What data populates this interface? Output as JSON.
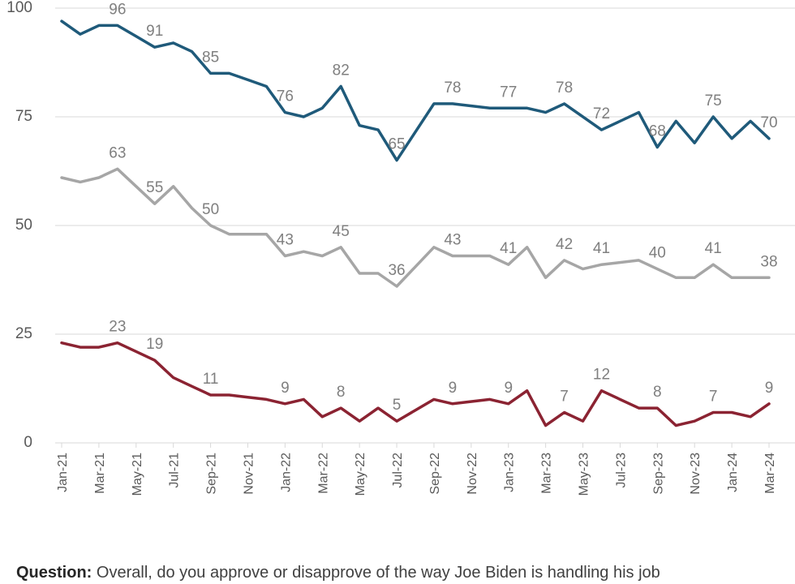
{
  "chart_data": {
    "type": "line",
    "ylim": [
      0,
      100
    ],
    "yticks": [
      0,
      25,
      50,
      75,
      100
    ],
    "grid": true,
    "x_tick_labels": [
      "Jan-21",
      "Mar-21",
      "May-21",
      "Jul-21",
      "Sep-21",
      "Nov-21",
      "Jan-22",
      "Mar-22",
      "May-22",
      "Jul-22",
      "Sep-22",
      "Nov-22",
      "Jan-23",
      "Mar-23",
      "May-23",
      "Jul-23",
      "Sep-23",
      "Nov-23",
      "Jan-24",
      "Mar-24"
    ],
    "colors": [
      "#1f5a7a",
      "#a6a6a6",
      "#8b2332"
    ],
    "series": [
      {
        "color": "#1f5a7a",
        "points": [
          [
            "2021-01",
            97
          ],
          [
            "2021-02",
            94
          ],
          [
            "2021-03",
            96
          ],
          [
            "2021-04",
            96
          ],
          [
            "2021-05",
            93.5
          ],
          [
            "2021-06",
            91
          ],
          [
            "2021-07",
            92
          ],
          [
            "2021-08",
            90
          ],
          [
            "2021-09",
            85
          ],
          [
            "2021-10",
            85
          ],
          [
            "2021-11",
            83.5
          ],
          [
            "2021-12",
            82
          ],
          [
            "2022-01",
            76
          ],
          [
            "2022-02",
            75
          ],
          [
            "2022-03",
            77
          ],
          [
            "2022-04",
            82
          ],
          [
            "2022-05",
            73
          ],
          [
            "2022-06",
            72
          ],
          [
            "2022-07",
            65
          ],
          [
            "2022-09",
            78
          ],
          [
            "2022-10",
            78
          ],
          [
            "2022-12",
            77
          ],
          [
            "2023-01",
            77
          ],
          [
            "2023-02",
            77
          ],
          [
            "2023-03",
            76
          ],
          [
            "2023-04",
            78
          ],
          [
            "2023-06",
            72
          ],
          [
            "2023-08",
            76
          ],
          [
            "2023-09",
            68
          ],
          [
            "2023-10",
            74
          ],
          [
            "2023-11",
            69
          ],
          [
            "2023-12",
            75
          ],
          [
            "2024-01",
            70
          ],
          [
            "2024-02",
            74
          ],
          [
            "2024-03",
            70
          ]
        ],
        "labels": [
          [
            "2021-04",
            96
          ],
          [
            "2021-06",
            91
          ],
          [
            "2021-09",
            85
          ],
          [
            "2022-01",
            76
          ],
          [
            "2022-04",
            82
          ],
          [
            "2022-07",
            65
          ],
          [
            "2022-10",
            78
          ],
          [
            "2023-01",
            77
          ],
          [
            "2023-04",
            78
          ],
          [
            "2023-06",
            72
          ],
          [
            "2023-09",
            68
          ],
          [
            "2023-12",
            75
          ],
          [
            "2024-03",
            70
          ]
        ]
      },
      {
        "color": "#a6a6a6",
        "points": [
          [
            "2021-01",
            61
          ],
          [
            "2021-02",
            60
          ],
          [
            "2021-03",
            61
          ],
          [
            "2021-04",
            63
          ],
          [
            "2021-05",
            59
          ],
          [
            "2021-06",
            55
          ],
          [
            "2021-07",
            59
          ],
          [
            "2021-08",
            54
          ],
          [
            "2021-09",
            50
          ],
          [
            "2021-10",
            48
          ],
          [
            "2021-11",
            48
          ],
          [
            "2021-12",
            48
          ],
          [
            "2022-01",
            43
          ],
          [
            "2022-02",
            44
          ],
          [
            "2022-03",
            43
          ],
          [
            "2022-04",
            45
          ],
          [
            "2022-05",
            39
          ],
          [
            "2022-06",
            39
          ],
          [
            "2022-07",
            36
          ],
          [
            "2022-09",
            45
          ],
          [
            "2022-10",
            43
          ],
          [
            "2022-12",
            43
          ],
          [
            "2023-01",
            41
          ],
          [
            "2023-02",
            45
          ],
          [
            "2023-03",
            38
          ],
          [
            "2023-04",
            42
          ],
          [
            "2023-05",
            40
          ],
          [
            "2023-06",
            41
          ],
          [
            "2023-08",
            42
          ],
          [
            "2023-10",
            38
          ],
          [
            "2023-11",
            38
          ],
          [
            "2023-12",
            41
          ],
          [
            "2024-01",
            38
          ],
          [
            "2024-02",
            38
          ],
          [
            "2024-03",
            38
          ]
        ],
        "labels": [
          [
            "2021-04",
            63
          ],
          [
            "2021-06",
            55
          ],
          [
            "2021-09",
            50
          ],
          [
            "2022-01",
            43
          ],
          [
            "2022-04",
            45
          ],
          [
            "2022-07",
            36
          ],
          [
            "2022-10",
            43
          ],
          [
            "2023-01",
            41
          ],
          [
            "2023-04",
            42
          ],
          [
            "2023-06",
            41
          ],
          [
            "2023-09",
            40
          ],
          [
            "2023-12",
            41
          ],
          [
            "2024-03",
            38
          ]
        ]
      },
      {
        "color": "#8b2332",
        "points": [
          [
            "2021-01",
            23
          ],
          [
            "2021-02",
            22
          ],
          [
            "2021-03",
            22
          ],
          [
            "2021-04",
            23
          ],
          [
            "2021-05",
            21
          ],
          [
            "2021-06",
            19
          ],
          [
            "2021-07",
            15
          ],
          [
            "2021-08",
            13
          ],
          [
            "2021-09",
            11
          ],
          [
            "2021-10",
            11
          ],
          [
            "2021-11",
            10.5
          ],
          [
            "2021-12",
            10
          ],
          [
            "2022-01",
            9
          ],
          [
            "2022-02",
            10
          ],
          [
            "2022-03",
            6
          ],
          [
            "2022-04",
            8
          ],
          [
            "2022-05",
            5
          ],
          [
            "2022-06",
            8
          ],
          [
            "2022-07",
            5
          ],
          [
            "2022-09",
            10
          ],
          [
            "2022-10",
            9
          ],
          [
            "2022-12",
            10
          ],
          [
            "2023-01",
            9
          ],
          [
            "2023-02",
            12
          ],
          [
            "2023-03",
            4
          ],
          [
            "2023-04",
            7
          ],
          [
            "2023-05",
            5
          ],
          [
            "2023-06",
            12
          ],
          [
            "2023-08",
            8
          ],
          [
            "2023-09",
            8
          ],
          [
            "2023-10",
            4
          ],
          [
            "2023-11",
            5
          ],
          [
            "2023-12",
            7
          ],
          [
            "2024-01",
            7
          ],
          [
            "2024-02",
            6
          ],
          [
            "2024-03",
            9
          ]
        ],
        "labels": [
          [
            "2021-04",
            23
          ],
          [
            "2021-06",
            19
          ],
          [
            "2021-09",
            11
          ],
          [
            "2022-01",
            9
          ],
          [
            "2022-04",
            8
          ],
          [
            "2022-07",
            5
          ],
          [
            "2022-10",
            9
          ],
          [
            "2023-01",
            9
          ],
          [
            "2023-04",
            7
          ],
          [
            "2023-06",
            12
          ],
          [
            "2023-09",
            8
          ],
          [
            "2023-12",
            7
          ],
          [
            "2024-03",
            9
          ]
        ]
      }
    ]
  },
  "footnote": {
    "prefix": "Question:",
    "text": "Overall, do you approve or disapprove of the way Joe Biden is handling his job"
  }
}
